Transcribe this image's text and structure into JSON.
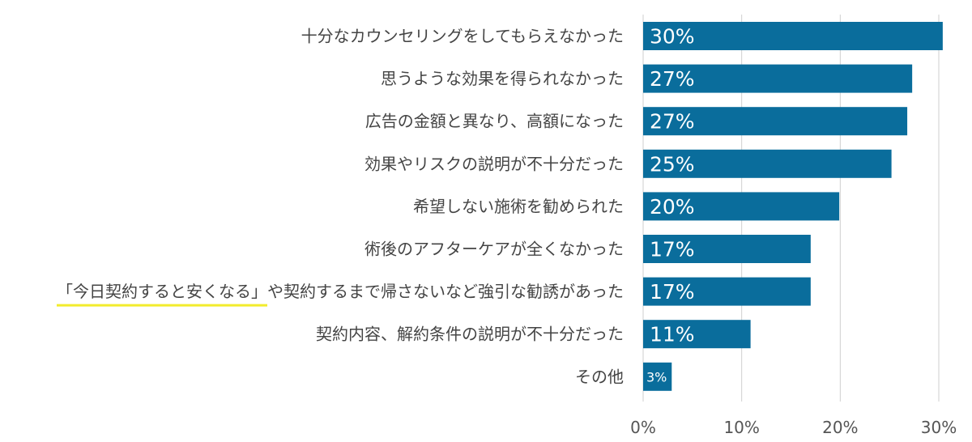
{
  "chart_data": {
    "type": "bar",
    "orientation": "horizontal",
    "categories": [
      "十分なカウンセリングをしてもらえなかった",
      "思うような効果を得られなかった",
      "広告の金額と異なり、高額になった",
      "効果やリスクの説明が不十分だった",
      "希望しない施術を勧められた",
      "術後のアフターケアが全くなかった",
      "「今日契約すると安くなる」や契約するまで帰さないなど強引な勧誘があった",
      "契約内容、解約条件の説明が不十分だった",
      "その他"
    ],
    "values": [
      30.4,
      27.3,
      26.8,
      25.2,
      19.9,
      17.0,
      17.0,
      10.9,
      2.9
    ],
    "value_labels": [
      "30%",
      "27%",
      "27%",
      "25%",
      "20%",
      "17%",
      "17%",
      "11%",
      "3%"
    ],
    "highlighted_text": "「今日契約すると安くなる」",
    "highlight_category_index": 6,
    "xlim": [
      0,
      30
    ],
    "x_ticks": [
      0,
      10,
      20,
      30
    ],
    "x_tick_labels": [
      "0%",
      "10%",
      "20%",
      "30%"
    ],
    "grid": true,
    "title": "",
    "xlabel": "",
    "ylabel": "",
    "colors": {
      "bar": "#0a6d9c",
      "highlight": "#f2ec2c",
      "grid": "#cfcfcf"
    }
  }
}
